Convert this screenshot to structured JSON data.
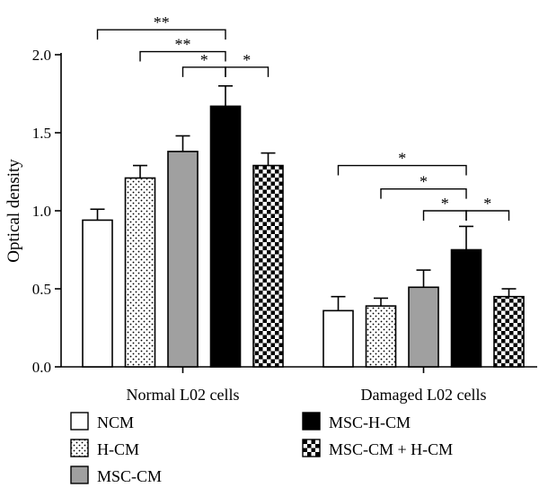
{
  "chart_data": {
    "type": "bar",
    "ylabel": "Optical density",
    "ylim": [
      0,
      2.0
    ],
    "y_ticks": [
      "0.0",
      "0.5",
      "1.0",
      "1.5",
      "2.0"
    ],
    "y_tick_values": [
      0,
      0.5,
      1.0,
      1.5,
      2.0
    ],
    "groups": [
      "Normal L02 cells",
      "Damaged L02 cells"
    ],
    "series": [
      {
        "name": "NCM",
        "pattern": "white",
        "values": [
          0.94,
          0.36
        ],
        "errors": [
          0.07,
          0.09
        ]
      },
      {
        "name": "H-CM",
        "pattern": "dots",
        "values": [
          1.21,
          0.39
        ],
        "errors": [
          0.08,
          0.05
        ]
      },
      {
        "name": "MSC-CM",
        "pattern": "gray",
        "values": [
          1.38,
          0.51
        ],
        "errors": [
          0.1,
          0.11
        ]
      },
      {
        "name": "MSC-H-CM",
        "pattern": "black",
        "values": [
          1.67,
          0.75
        ],
        "errors": [
          0.13,
          0.15
        ]
      },
      {
        "name": "MSC-CM + H-CM",
        "pattern": "checker",
        "values": [
          1.29,
          0.45
        ],
        "errors": [
          0.08,
          0.05
        ]
      }
    ],
    "colors": {
      "gray": "#a0a0a0",
      "black": "#000000"
    },
    "significance": [
      {
        "group": 0,
        "from": 0,
        "to": 3,
        "label": "**",
        "y": 2.16
      },
      {
        "group": 0,
        "from": 1,
        "to": 3,
        "label": "**",
        "y": 2.02
      },
      {
        "group": 0,
        "from": 2,
        "to": 3,
        "label": "*",
        "y": 1.92
      },
      {
        "group": 0,
        "from": 3,
        "to": 4,
        "label": "*",
        "y": 1.92
      },
      {
        "group": 1,
        "from": 0,
        "to": 3,
        "label": "*",
        "y": 1.29
      },
      {
        "group": 1,
        "from": 1,
        "to": 3,
        "label": "*",
        "y": 1.14
      },
      {
        "group": 1,
        "from": 2,
        "to": 3,
        "label": "*",
        "y": 1.0
      },
      {
        "group": 1,
        "from": 3,
        "to": 4,
        "label": "*",
        "y": 1.0
      }
    ],
    "legend": [
      "NCM",
      "H-CM",
      "MSC-CM",
      "MSC-H-CM",
      "MSC-CM + H-CM"
    ]
  }
}
